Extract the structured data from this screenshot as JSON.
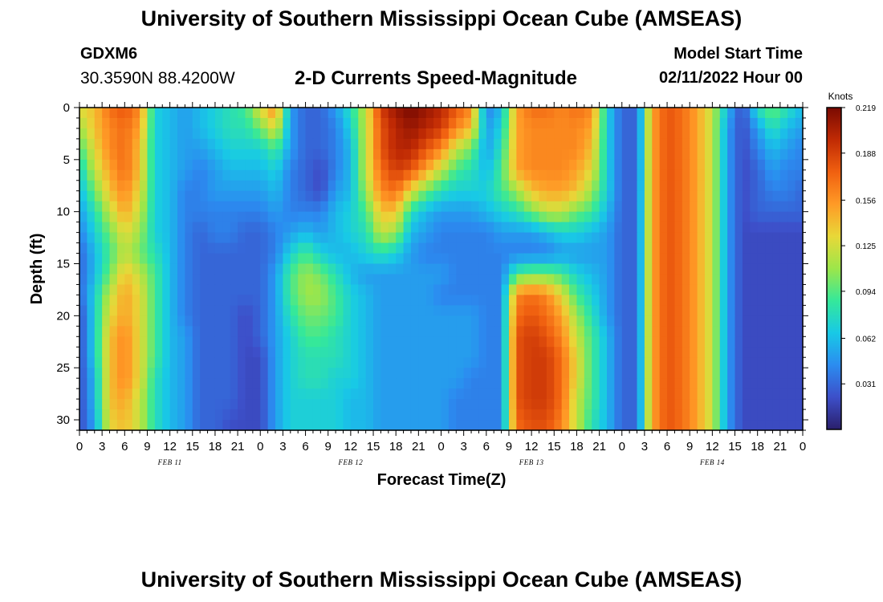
{
  "titles": {
    "top": "University of Southern Mississippi Ocean Cube (AMSEAS)",
    "bottom": "University of Southern Mississippi Ocean Cube (AMSEAS)"
  },
  "station": {
    "name": "GDXM6",
    "coords": "30.3590N  88.4200W"
  },
  "model_start": {
    "label": "Model Start Time",
    "value": "02/11/2022 Hour 00"
  },
  "chart_data": {
    "type": "heatmap",
    "title": "2-D Currents Speed-Magnitude",
    "xlabel": "Forecast Time(Z)",
    "ylabel": "Depth (ft)",
    "x_range": [
      0,
      96
    ],
    "x_step_hours": 1,
    "ylim": [
      0,
      31
    ],
    "y_inverted": true,
    "x_tick_values": [
      0,
      3,
      6,
      9,
      12,
      15,
      18,
      21,
      24,
      27,
      30,
      33,
      36,
      39,
      42,
      45,
      48,
      51,
      54,
      57,
      60,
      63,
      66,
      69,
      72,
      75,
      78,
      81,
      84,
      87,
      90,
      93,
      96
    ],
    "x_tick_labels": [
      "0",
      "3",
      "6",
      "9",
      "12",
      "15",
      "18",
      "21",
      "0",
      "3",
      "6",
      "9",
      "12",
      "15",
      "18",
      "21",
      "0",
      "3",
      "6",
      "9",
      "12",
      "15",
      "18",
      "21",
      "0",
      "3",
      "6",
      "9",
      "12",
      "15",
      "18",
      "21",
      "0"
    ],
    "y_ticks": [
      0,
      5,
      10,
      15,
      20,
      25,
      30
    ],
    "y_tick_labels": [
      "0",
      "5",
      "10",
      "15",
      "20",
      "25",
      "30"
    ],
    "date_labels": [
      {
        "hour": 12,
        "text": "FEB 11"
      },
      {
        "hour": 36,
        "text": "FEB 12"
      },
      {
        "hour": 60,
        "text": "FEB 13"
      },
      {
        "hour": 84,
        "text": "FEB 14"
      }
    ],
    "colorbar": {
      "unit": "Knots",
      "min": 0,
      "max": 0.219,
      "ticks": [
        0.219,
        0.188,
        0.156,
        0.125,
        0.094,
        0.062,
        0.031
      ],
      "tick_labels": [
        "0.219",
        "0.188",
        "0.156",
        "0.125",
        "0.094",
        "0.062",
        "0.031"
      ],
      "colors": [
        "#2a1f6b",
        "#3d4fc9",
        "#2b8cf0",
        "#18c9e6",
        "#35e89a",
        "#9de64a",
        "#e8d838",
        "#ff9a26",
        "#f06010",
        "#c02a04",
        "#7a0a02"
      ]
    },
    "speed_knots": {
      "description": "Approximate current speed (knots); rows at depth (ft), columns at hour",
      "depths": [
        0,
        2,
        4,
        6,
        8,
        10,
        12,
        14,
        16,
        18,
        20,
        22,
        24,
        26,
        28,
        31
      ],
      "hours": [
        0,
        2,
        4,
        6,
        8,
        10,
        12,
        14,
        16,
        18,
        20,
        22,
        24,
        26,
        28,
        30,
        32,
        34,
        36,
        38,
        40,
        42,
        44,
        46,
        48,
        50,
        52,
        54,
        56,
        58,
        60,
        62,
        64,
        66,
        68,
        70,
        72,
        74,
        76,
        78,
        80,
        82,
        84,
        86,
        88,
        90,
        92,
        94,
        96
      ],
      "rows": [
        [
          0.13,
          0.14,
          0.17,
          0.18,
          0.16,
          0.07,
          0.06,
          0.05,
          0.06,
          0.07,
          0.08,
          0.09,
          0.13,
          0.16,
          0.05,
          0.03,
          0.03,
          0.05,
          0.08,
          0.12,
          0.19,
          0.21,
          0.22,
          0.21,
          0.2,
          0.18,
          0.16,
          0.04,
          0.06,
          0.15,
          0.17,
          0.17,
          0.16,
          0.17,
          0.16,
          0.07,
          0.03,
          0.03,
          0.15,
          0.18,
          0.17,
          0.15,
          0.12,
          0.06,
          0.02,
          0.08,
          0.1,
          0.08,
          0.06
        ],
        [
          0.11,
          0.14,
          0.16,
          0.17,
          0.15,
          0.07,
          0.06,
          0.05,
          0.06,
          0.07,
          0.08,
          0.08,
          0.1,
          0.13,
          0.05,
          0.03,
          0.03,
          0.04,
          0.07,
          0.12,
          0.18,
          0.2,
          0.21,
          0.2,
          0.19,
          0.16,
          0.14,
          0.05,
          0.07,
          0.15,
          0.16,
          0.16,
          0.16,
          0.16,
          0.15,
          0.07,
          0.03,
          0.03,
          0.15,
          0.18,
          0.17,
          0.15,
          0.12,
          0.05,
          0.02,
          0.05,
          0.08,
          0.06,
          0.05
        ],
        [
          0.09,
          0.13,
          0.16,
          0.17,
          0.14,
          0.07,
          0.06,
          0.05,
          0.05,
          0.06,
          0.07,
          0.07,
          0.07,
          0.09,
          0.05,
          0.03,
          0.03,
          0.04,
          0.06,
          0.12,
          0.18,
          0.2,
          0.2,
          0.18,
          0.16,
          0.12,
          0.1,
          0.05,
          0.08,
          0.15,
          0.16,
          0.16,
          0.16,
          0.16,
          0.14,
          0.07,
          0.03,
          0.03,
          0.15,
          0.18,
          0.17,
          0.15,
          0.12,
          0.05,
          0.02,
          0.04,
          0.06,
          0.05,
          0.04
        ],
        [
          0.07,
          0.12,
          0.15,
          0.17,
          0.14,
          0.07,
          0.06,
          0.05,
          0.04,
          0.05,
          0.06,
          0.06,
          0.06,
          0.07,
          0.04,
          0.03,
          0.02,
          0.04,
          0.06,
          0.12,
          0.17,
          0.19,
          0.18,
          0.15,
          0.12,
          0.09,
          0.08,
          0.06,
          0.09,
          0.15,
          0.16,
          0.16,
          0.16,
          0.15,
          0.13,
          0.07,
          0.03,
          0.03,
          0.15,
          0.18,
          0.17,
          0.15,
          0.12,
          0.05,
          0.02,
          0.03,
          0.05,
          0.04,
          0.04
        ],
        [
          0.06,
          0.1,
          0.14,
          0.16,
          0.13,
          0.07,
          0.06,
          0.04,
          0.04,
          0.05,
          0.05,
          0.05,
          0.05,
          0.06,
          0.04,
          0.03,
          0.02,
          0.05,
          0.06,
          0.11,
          0.16,
          0.17,
          0.13,
          0.1,
          0.08,
          0.07,
          0.07,
          0.07,
          0.09,
          0.11,
          0.14,
          0.15,
          0.15,
          0.14,
          0.11,
          0.07,
          0.03,
          0.03,
          0.15,
          0.18,
          0.17,
          0.15,
          0.12,
          0.05,
          0.02,
          0.03,
          0.04,
          0.04,
          0.03
        ],
        [
          0.05,
          0.08,
          0.12,
          0.15,
          0.12,
          0.07,
          0.06,
          0.04,
          0.04,
          0.04,
          0.04,
          0.04,
          0.04,
          0.05,
          0.04,
          0.04,
          0.04,
          0.06,
          0.07,
          0.09,
          0.14,
          0.14,
          0.08,
          0.06,
          0.05,
          0.05,
          0.05,
          0.06,
          0.07,
          0.08,
          0.1,
          0.12,
          0.12,
          0.1,
          0.09,
          0.06,
          0.03,
          0.03,
          0.15,
          0.18,
          0.17,
          0.15,
          0.12,
          0.05,
          0.02,
          0.03,
          0.03,
          0.03,
          0.03
        ],
        [
          0.04,
          0.07,
          0.1,
          0.13,
          0.11,
          0.07,
          0.06,
          0.04,
          0.03,
          0.04,
          0.04,
          0.03,
          0.03,
          0.04,
          0.05,
          0.06,
          0.05,
          0.06,
          0.07,
          0.08,
          0.12,
          0.11,
          0.06,
          0.05,
          0.04,
          0.04,
          0.04,
          0.04,
          0.05,
          0.05,
          0.05,
          0.06,
          0.07,
          0.07,
          0.06,
          0.05,
          0.03,
          0.03,
          0.15,
          0.18,
          0.17,
          0.15,
          0.12,
          0.05,
          0.02,
          0.02,
          0.02,
          0.02,
          0.02
        ],
        [
          0.03,
          0.06,
          0.09,
          0.12,
          0.1,
          0.08,
          0.06,
          0.04,
          0.03,
          0.03,
          0.03,
          0.03,
          0.03,
          0.04,
          0.07,
          0.09,
          0.07,
          0.06,
          0.06,
          0.07,
          0.08,
          0.07,
          0.05,
          0.04,
          0.04,
          0.04,
          0.04,
          0.04,
          0.04,
          0.04,
          0.04,
          0.04,
          0.05,
          0.05,
          0.05,
          0.05,
          0.03,
          0.03,
          0.15,
          0.18,
          0.17,
          0.15,
          0.12,
          0.05,
          0.02,
          0.02,
          0.02,
          0.02,
          0.02
        ],
        [
          0.03,
          0.06,
          0.1,
          0.14,
          0.12,
          0.09,
          0.06,
          0.04,
          0.03,
          0.03,
          0.03,
          0.03,
          0.03,
          0.05,
          0.09,
          0.11,
          0.1,
          0.08,
          0.06,
          0.05,
          0.05,
          0.05,
          0.05,
          0.05,
          0.05,
          0.04,
          0.04,
          0.04,
          0.04,
          0.09,
          0.1,
          0.1,
          0.09,
          0.07,
          0.06,
          0.05,
          0.03,
          0.03,
          0.15,
          0.18,
          0.17,
          0.15,
          0.12,
          0.05,
          0.02,
          0.02,
          0.02,
          0.02,
          0.02
        ],
        [
          0.03,
          0.07,
          0.12,
          0.15,
          0.13,
          0.09,
          0.06,
          0.04,
          0.03,
          0.03,
          0.03,
          0.03,
          0.03,
          0.05,
          0.09,
          0.11,
          0.11,
          0.09,
          0.07,
          0.06,
          0.05,
          0.05,
          0.05,
          0.05,
          0.04,
          0.04,
          0.04,
          0.04,
          0.04,
          0.16,
          0.17,
          0.16,
          0.13,
          0.09,
          0.07,
          0.05,
          0.03,
          0.03,
          0.15,
          0.18,
          0.17,
          0.15,
          0.12,
          0.05,
          0.02,
          0.02,
          0.02,
          0.02,
          0.02
        ],
        [
          0.02,
          0.07,
          0.13,
          0.15,
          0.13,
          0.09,
          0.06,
          0.04,
          0.03,
          0.03,
          0.03,
          0.02,
          0.03,
          0.05,
          0.08,
          0.1,
          0.1,
          0.09,
          0.07,
          0.06,
          0.05,
          0.05,
          0.05,
          0.05,
          0.05,
          0.05,
          0.05,
          0.04,
          0.04,
          0.17,
          0.18,
          0.17,
          0.15,
          0.11,
          0.08,
          0.05,
          0.03,
          0.03,
          0.15,
          0.18,
          0.17,
          0.15,
          0.12,
          0.05,
          0.02,
          0.02,
          0.02,
          0.02,
          0.02
        ],
        [
          0.02,
          0.07,
          0.14,
          0.16,
          0.13,
          0.09,
          0.06,
          0.05,
          0.03,
          0.03,
          0.03,
          0.02,
          0.03,
          0.05,
          0.07,
          0.09,
          0.09,
          0.08,
          0.07,
          0.06,
          0.05,
          0.05,
          0.05,
          0.05,
          0.05,
          0.05,
          0.05,
          0.04,
          0.04,
          0.18,
          0.19,
          0.18,
          0.16,
          0.12,
          0.09,
          0.06,
          0.03,
          0.03,
          0.15,
          0.18,
          0.17,
          0.15,
          0.12,
          0.05,
          0.02,
          0.02,
          0.02,
          0.02,
          0.02
        ],
        [
          0.02,
          0.07,
          0.14,
          0.16,
          0.13,
          0.09,
          0.06,
          0.05,
          0.03,
          0.03,
          0.03,
          0.02,
          0.02,
          0.05,
          0.07,
          0.08,
          0.08,
          0.08,
          0.07,
          0.06,
          0.05,
          0.05,
          0.05,
          0.05,
          0.05,
          0.05,
          0.05,
          0.04,
          0.04,
          0.18,
          0.19,
          0.19,
          0.17,
          0.13,
          0.09,
          0.06,
          0.03,
          0.03,
          0.15,
          0.18,
          0.17,
          0.15,
          0.12,
          0.05,
          0.02,
          0.02,
          0.02,
          0.02,
          0.02
        ],
        [
          0.02,
          0.06,
          0.14,
          0.16,
          0.13,
          0.08,
          0.06,
          0.05,
          0.03,
          0.03,
          0.03,
          0.02,
          0.02,
          0.05,
          0.07,
          0.08,
          0.08,
          0.07,
          0.07,
          0.06,
          0.05,
          0.05,
          0.05,
          0.05,
          0.05,
          0.05,
          0.04,
          0.04,
          0.04,
          0.18,
          0.19,
          0.19,
          0.17,
          0.13,
          0.09,
          0.06,
          0.03,
          0.03,
          0.15,
          0.18,
          0.17,
          0.15,
          0.12,
          0.05,
          0.02,
          0.02,
          0.02,
          0.02,
          0.02
        ],
        [
          0.02,
          0.06,
          0.14,
          0.15,
          0.12,
          0.08,
          0.06,
          0.05,
          0.03,
          0.03,
          0.03,
          0.02,
          0.02,
          0.05,
          0.07,
          0.07,
          0.07,
          0.07,
          0.06,
          0.06,
          0.05,
          0.05,
          0.05,
          0.05,
          0.05,
          0.04,
          0.04,
          0.04,
          0.04,
          0.18,
          0.19,
          0.19,
          0.17,
          0.12,
          0.09,
          0.06,
          0.03,
          0.03,
          0.15,
          0.18,
          0.17,
          0.15,
          0.12,
          0.05,
          0.02,
          0.02,
          0.02,
          0.02,
          0.02
        ],
        [
          0.02,
          0.05,
          0.13,
          0.14,
          0.12,
          0.08,
          0.06,
          0.05,
          0.03,
          0.03,
          0.02,
          0.02,
          0.02,
          0.05,
          0.07,
          0.07,
          0.07,
          0.07,
          0.06,
          0.06,
          0.05,
          0.05,
          0.05,
          0.05,
          0.05,
          0.04,
          0.04,
          0.04,
          0.04,
          0.17,
          0.18,
          0.18,
          0.16,
          0.12,
          0.08,
          0.06,
          0.03,
          0.03,
          0.15,
          0.18,
          0.17,
          0.15,
          0.12,
          0.05,
          0.02,
          0.02,
          0.02,
          0.02,
          0.02
        ]
      ]
    }
  }
}
